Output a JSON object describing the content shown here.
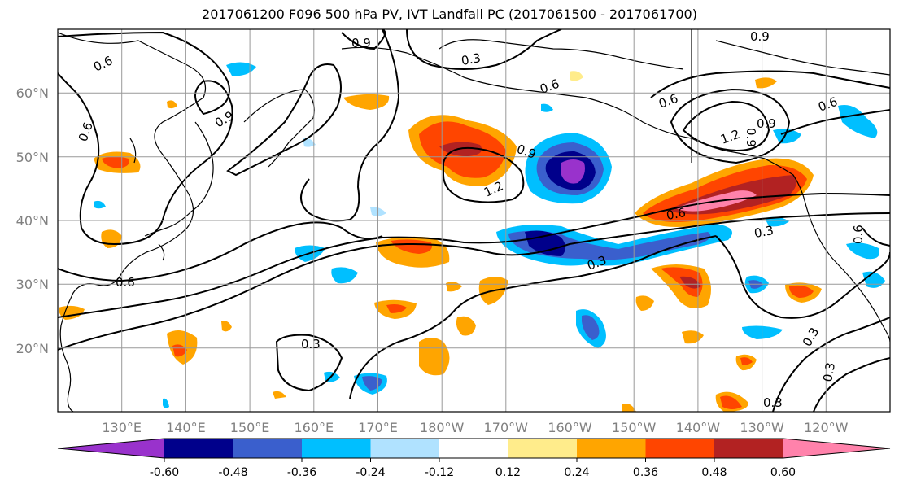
{
  "title": "2017061200 F096 500 hPa PV, IVT Landfall PC (2017061500 - 2017061700)",
  "map": {
    "lon_range": [
      120,
      250
    ],
    "lat_range": [
      10,
      70
    ],
    "lon_ticks": [
      "130°E",
      "140°E",
      "150°E",
      "160°E",
      "170°E",
      "180°W",
      "170°W",
      "160°W",
      "150°W",
      "140°W",
      "130°W",
      "120°W"
    ],
    "lat_ticks": [
      "20°N",
      "30°N",
      "40°N",
      "50°N",
      "60°N"
    ],
    "contour_labels": [
      "0.6",
      "0.9",
      "0.9",
      "0.9",
      "0.6",
      "0.6",
      "0.6",
      "0.9",
      "1.2",
      "1.2",
      "0.9",
      "0.6",
      "0.6",
      "0.3",
      "0.3",
      "0.6",
      "0.3",
      "0.3",
      "0.3",
      "0.3",
      "0.3",
      "0.9",
      "0.6"
    ]
  },
  "colorbar": {
    "colors": [
      "#9932cc",
      "#00008b",
      "#3a5fcd",
      "#00bfff",
      "#b0e2ff",
      "#ffffff",
      "#ffffff",
      "#ffec8b",
      "#ffa500",
      "#ff4500",
      "#b22222",
      "#ff82ab"
    ],
    "labels": [
      "-0.60",
      "-0.48",
      "-0.36",
      "-0.24",
      "-0.12",
      "0.12",
      "0.24",
      "0.36",
      "0.48",
      "0.60"
    ]
  }
}
